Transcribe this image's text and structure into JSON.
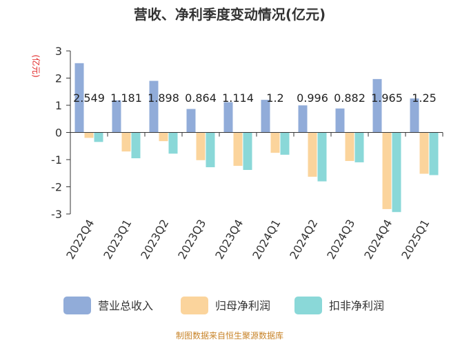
{
  "chart_data": {
    "type": "bar",
    "title": "营收、净利季度变动情况(亿元)",
    "ylabel": "(亿元)",
    "ylim": [
      -3,
      3
    ],
    "yticks": [
      3,
      2,
      1,
      0,
      -1,
      -2,
      -3
    ],
    "categories": [
      "2022Q4",
      "2023Q1",
      "2023Q2",
      "2023Q3",
      "2023Q4",
      "2024Q1",
      "2024Q2",
      "2024Q3",
      "2024Q4",
      "2025Q1"
    ],
    "series": [
      {
        "name": "营业总收入",
        "color": "#91acd9",
        "values": [
          2.549,
          1.181,
          1.898,
          0.864,
          1.114,
          1.2,
          0.996,
          0.882,
          1.965,
          1.25
        ],
        "labels": [
          "2.549",
          "1.181",
          "1.898",
          "0.864",
          "1.114",
          "1.2",
          "0.996",
          "0.882",
          "1.965",
          "1.25"
        ]
      },
      {
        "name": "归母净利润",
        "color": "#fbd49c",
        "values": [
          -0.2,
          -0.7,
          -0.32,
          -1.02,
          -1.23,
          -0.75,
          -1.63,
          -1.05,
          -2.82,
          -1.52
        ]
      },
      {
        "name": "扣非净利润",
        "color": "#8ad8d8",
        "values": [
          -0.35,
          -0.95,
          -0.78,
          -1.28,
          -1.38,
          -0.82,
          -1.8,
          -1.1,
          -2.93,
          -1.57
        ]
      }
    ],
    "legend_position": "bottom",
    "grid": false
  },
  "source": "制图数据来自恒生聚源数据库",
  "colors": {
    "unit": "#e02020",
    "source": "#c8842a",
    "axis": "#333333"
  }
}
